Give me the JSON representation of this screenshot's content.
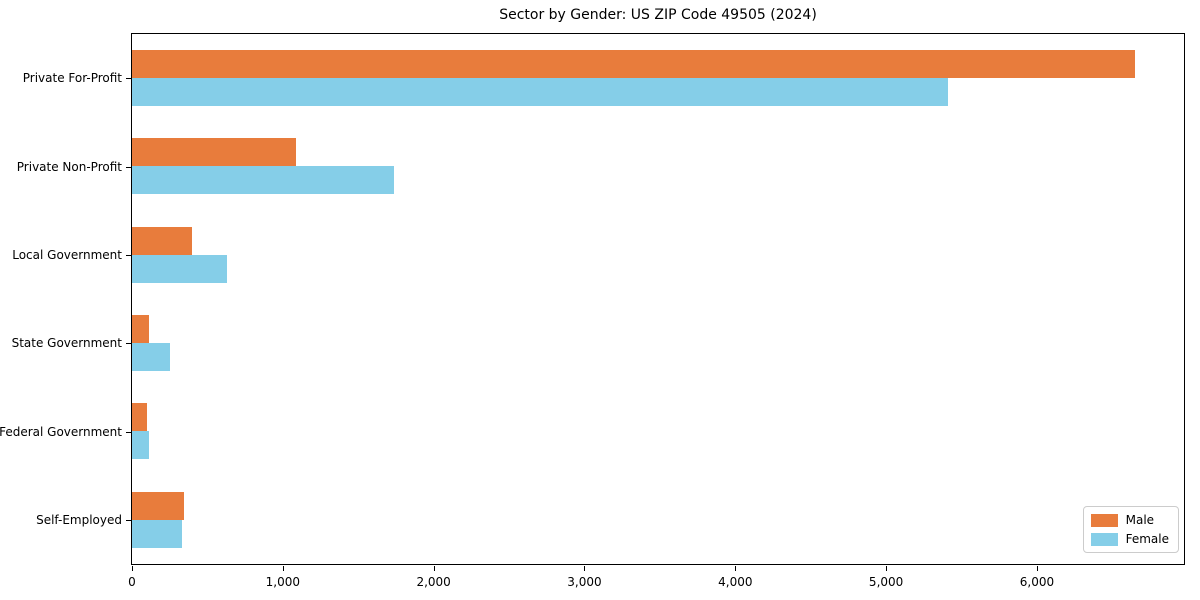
{
  "chart_data": {
    "type": "bar",
    "orientation": "horizontal",
    "title": "Sector by Gender: US ZIP Code 49505 (2024)",
    "categories": [
      "Private For-Profit",
      "Private Non-Profit",
      "Local Government",
      "State Government",
      "Federal Government",
      "Self-Employed"
    ],
    "series": [
      {
        "name": "Male",
        "color": "#e87c3c",
        "values": [
          6650,
          1090,
          400,
          115,
          100,
          345
        ]
      },
      {
        "name": "Female",
        "color": "#85cee8",
        "values": [
          5410,
          1735,
          630,
          250,
          115,
          330
        ]
      }
    ],
    "xlabel": "",
    "ylabel": "",
    "xlim": [
      0,
      6975
    ],
    "xticks": {
      "values": [
        0,
        1000,
        2000,
        3000,
        4000,
        5000,
        6000
      ],
      "labels": [
        "0",
        "1,000",
        "2,000",
        "3,000",
        "4,000",
        "5,000",
        "6,000"
      ]
    },
    "grid": false,
    "legend": {
      "position": "lower right",
      "entries": [
        "Male",
        "Female"
      ]
    }
  }
}
